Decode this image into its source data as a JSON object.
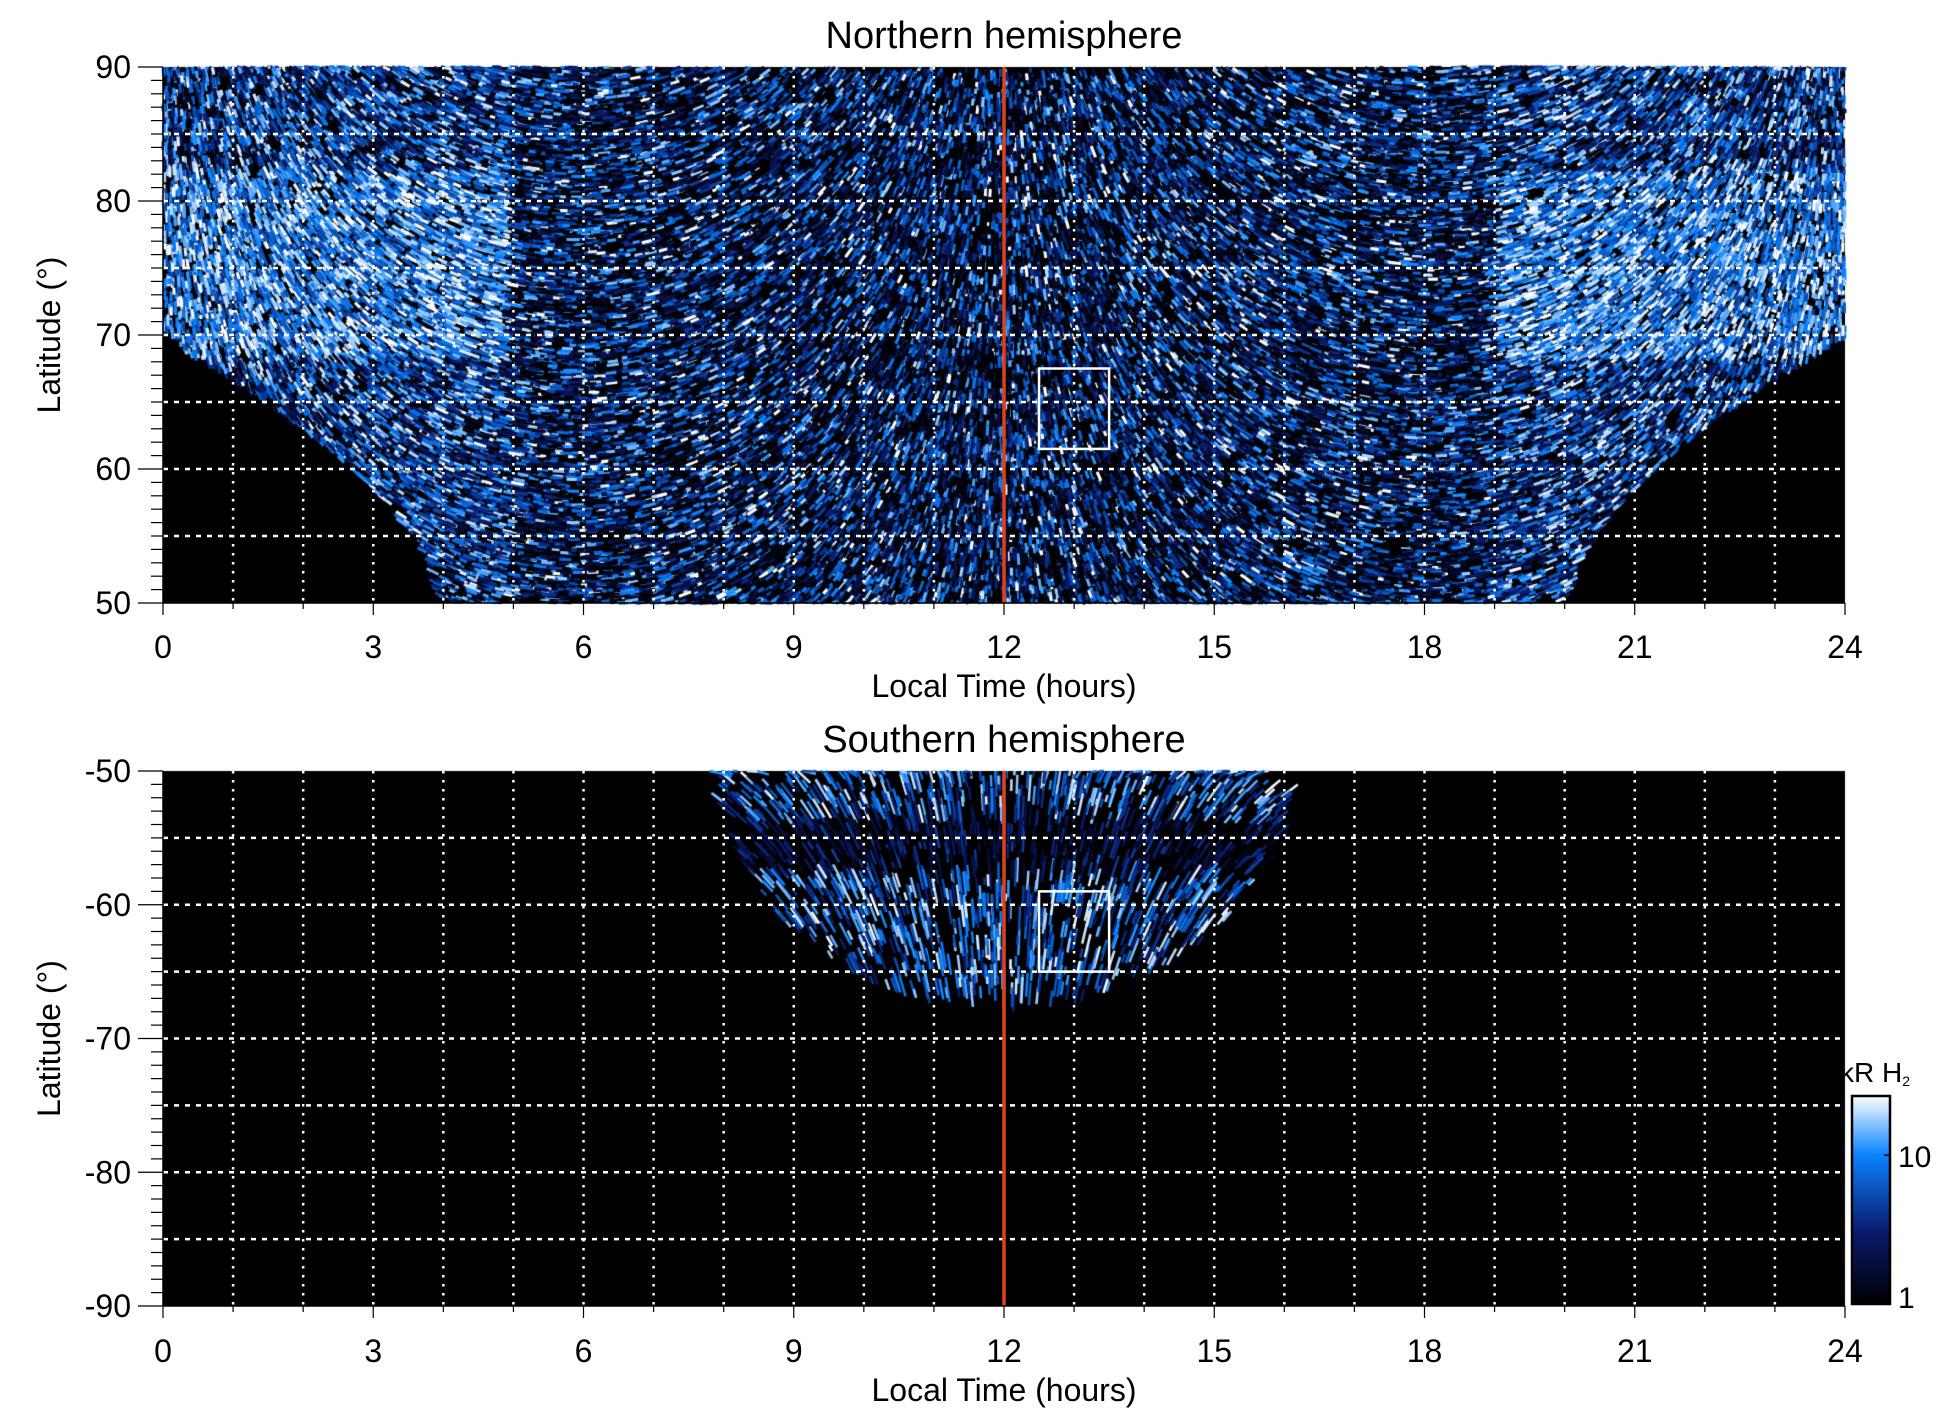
{
  "chart_data": [
    {
      "type": "heatmap",
      "title": "Northern hemisphere",
      "xlabel": "Local Time (hours)",
      "ylabel": "Latitude (°)",
      "xlim": [
        0,
        24
      ],
      "ylim": [
        50,
        90
      ],
      "xticks": [
        "0",
        "3",
        "6",
        "9",
        "12",
        "15",
        "18",
        "21",
        "24"
      ],
      "yticks": [
        "50",
        "60",
        "70",
        "80",
        "90"
      ],
      "grid": true,
      "reference_line_local_time": 12,
      "highlight_box": {
        "local_time": [
          12.5,
          13.5
        ],
        "latitude": [
          61.5,
          67.5
        ]
      },
      "coverage": "emission data above ~69.5° at 0/24 h, extending to 50° between ~4 h and ~20 h",
      "bright_band_latitude": [
        70,
        80
      ]
    },
    {
      "type": "heatmap",
      "title": "Southern hemisphere",
      "xlabel": "Local Time (hours)",
      "ylabel": "Latitude (°)",
      "xlim": [
        0,
        24
      ],
      "ylim": [
        -90,
        -50
      ],
      "xticks": [
        "0",
        "3",
        "6",
        "9",
        "12",
        "15",
        "18",
        "21",
        "24"
      ],
      "yticks": [
        "-90",
        "-80",
        "-70",
        "-60",
        "-50"
      ],
      "grid": true,
      "reference_line_local_time": 12,
      "highlight_box": {
        "local_time": [
          12.5,
          13.5
        ],
        "latitude": [
          -65,
          -59
        ]
      },
      "coverage": "emission data only between ~8 h and ~16 h, down to ~-68° at 12 h"
    }
  ],
  "colorbar": {
    "label_main": "kR H",
    "label_sub": "2",
    "scale": "log",
    "range": [
      1,
      25
    ],
    "ticks": [
      "1",
      "10"
    ],
    "colors": [
      "#000000",
      "#0a1a6e",
      "#0a84ff",
      "#ffffff"
    ]
  },
  "colors": {
    "reference_line": "#e0401a",
    "grid": "#ffffff",
    "box": "#ffffff"
  }
}
